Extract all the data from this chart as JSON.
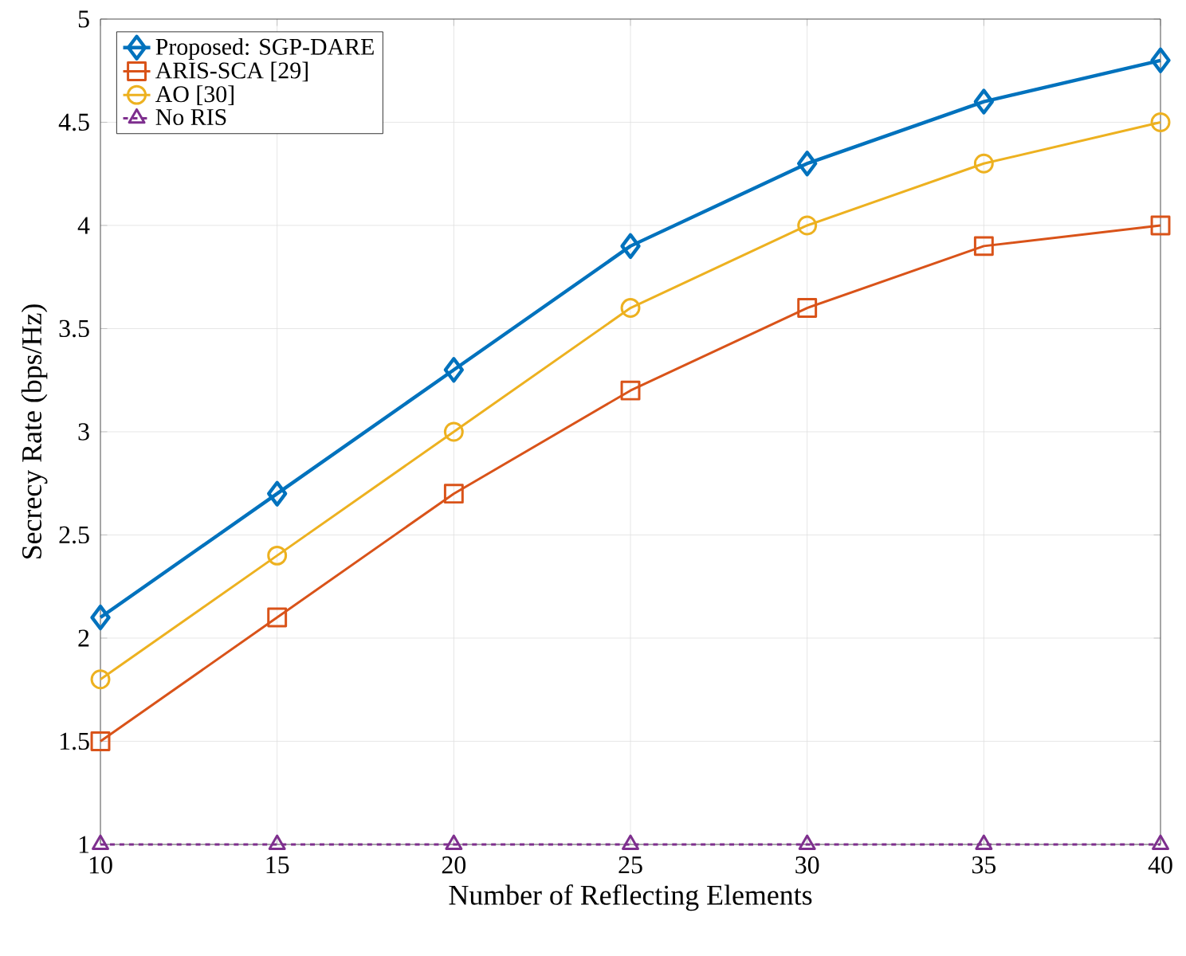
{
  "chart_data": {
    "type": "line",
    "xlabel": "Number of Reflecting Elements",
    "ylabel": "Secrecy Rate (bps/Hz)",
    "x": [
      10,
      15,
      20,
      25,
      30,
      35,
      40
    ],
    "series": [
      {
        "name": "Proposed: SGP-DARE",
        "color": "#0072bd",
        "marker": "diamond",
        "line_style": "solid",
        "values": [
          2.1,
          2.7,
          3.3,
          3.9,
          4.3,
          4.6,
          4.8
        ]
      },
      {
        "name": "ARIS-SCA [29]",
        "color": "#d95319",
        "marker": "square",
        "line_style": "solid",
        "values": [
          1.5,
          2.1,
          2.7,
          3.2,
          3.6,
          3.9,
          4.0
        ]
      },
      {
        "name": "AO [30]",
        "color": "#edb120",
        "marker": "circle",
        "line_style": "solid",
        "values": [
          1.8,
          2.4,
          3.0,
          3.6,
          4.0,
          4.3,
          4.5
        ]
      },
      {
        "name": "No RIS",
        "color": "#7e2f8e",
        "marker": "triangle",
        "line_style": "dashed",
        "values": [
          1,
          1,
          1,
          1,
          1,
          1,
          1
        ]
      }
    ],
    "xlim": [
      10,
      40
    ],
    "xticks": [
      10,
      15,
      20,
      25,
      30,
      35,
      40
    ],
    "ylim": [
      1,
      5
    ],
    "yticks": [
      1,
      1.5,
      2,
      2.5,
      3,
      3.5,
      4,
      4.5,
      5
    ],
    "grid": true,
    "legend": "top left"
  }
}
